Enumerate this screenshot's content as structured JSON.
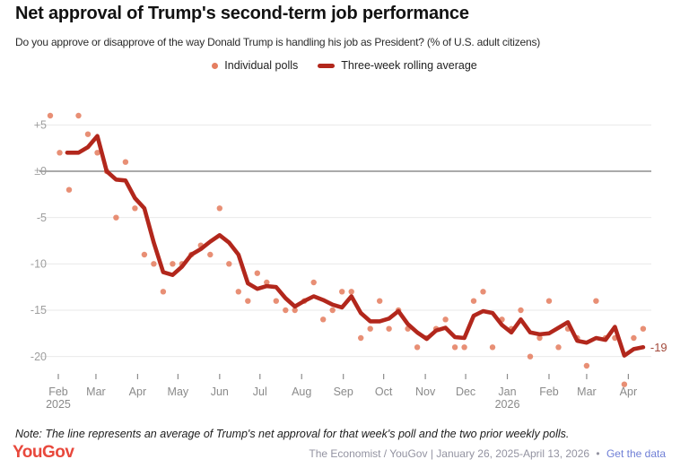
{
  "header": {
    "title": "Net approval of Trump's second-term job performance",
    "subtitle": "Do you approve or disapprove of the way Donald Trump is handling his job as President? (% of U.S. adult citizens)"
  },
  "colors": {
    "poll_dot": "#E57E60",
    "average_line": "#B2271C",
    "grid": "#EAEAEA",
    "zero_line": "#565656",
    "y_axis_text": "#9E9E9E",
    "x_axis_text": "#8A8A8A",
    "tick": "#8C8C8C",
    "end_label": "#A34A3C",
    "yougov_red": "#E8483C",
    "footer_text": "#9393A1",
    "link": "#6F7FD6"
  },
  "chart_data": {
    "type": "scatter+line",
    "title": "Net approval of Trump's second-term job performance",
    "subtitle": "Do you approve or disapprove of the way Donald Trump is handling his job as President? (% of U.S. adult citizens)",
    "grid": true,
    "legend_position": "top-center",
    "ylim": [
      -24,
      7
    ],
    "y_ticks": [
      {
        "label": "+5",
        "value": 5
      },
      {
        "label": "±0",
        "value": 0
      },
      {
        "label": "-5",
        "value": -5
      },
      {
        "label": "-10",
        "value": -10
      },
      {
        "label": "-15",
        "value": -15
      },
      {
        "label": "-20",
        "value": -20
      }
    ],
    "x_axis": {
      "months": [
        {
          "label": "Feb",
          "sublabel": "2025",
          "day_offset": 6
        },
        {
          "label": "Mar",
          "day_offset": 34
        },
        {
          "label": "Apr",
          "day_offset": 65
        },
        {
          "label": "May",
          "day_offset": 95
        },
        {
          "label": "Jun",
          "day_offset": 126
        },
        {
          "label": "Jul",
          "day_offset": 156
        },
        {
          "label": "Aug",
          "day_offset": 187
        },
        {
          "label": "Sep",
          "day_offset": 218
        },
        {
          "label": "Oct",
          "day_offset": 248
        },
        {
          "label": "Nov",
          "day_offset": 279
        },
        {
          "label": "Dec",
          "day_offset": 309
        },
        {
          "label": "Jan",
          "sublabel": "2026",
          "day_offset": 340
        },
        {
          "label": "Feb",
          "day_offset": 371
        },
        {
          "label": "Mar",
          "day_offset": 399
        },
        {
          "label": "Apr",
          "day_offset": 430
        }
      ]
    },
    "series": [
      {
        "name": "Individual polls",
        "type": "scatter",
        "color": "#E57E60",
        "start_date": "January 26, 2025",
        "interval_days": 7,
        "values": [
          6,
          2,
          -2,
          6,
          4,
          2,
          0,
          -5,
          1,
          -4,
          -9,
          -10,
          -13,
          -10,
          -10,
          -9,
          -8,
          -9,
          -4,
          -10,
          -13,
          -14,
          -11,
          -12,
          -14,
          -15,
          -15,
          -14,
          -12,
          -16,
          -15,
          -13,
          -13,
          -18,
          -17,
          -14,
          -17,
          -15,
          -17,
          -19,
          -18,
          -17,
          -16,
          -19,
          -19,
          -14,
          -13,
          -19,
          -16,
          -17,
          -15,
          -20,
          -18,
          -14,
          -19,
          -17,
          -18,
          -21,
          -14,
          -18,
          -18,
          -23,
          -18,
          -17
        ]
      },
      {
        "name": "Three-week rolling average",
        "type": "line",
        "color": "#B2271C",
        "end_label": "-19",
        "points": [
          [
            1.8,
            2.0
          ],
          [
            3,
            2.0
          ],
          [
            4,
            2.6
          ],
          [
            5,
            3.8
          ],
          [
            6,
            0.0
          ],
          [
            7,
            -0.9
          ],
          [
            8,
            -1.0
          ],
          [
            9,
            -2.9
          ],
          [
            10,
            -4.0
          ],
          [
            11,
            -7.7
          ],
          [
            12,
            -10.9
          ],
          [
            13,
            -11.2
          ],
          [
            14,
            -10.3
          ],
          [
            15,
            -9.0
          ],
          [
            16,
            -8.4
          ],
          [
            17,
            -7.6
          ],
          [
            18,
            -6.9
          ],
          [
            19,
            -7.7
          ],
          [
            20,
            -9.0
          ],
          [
            21,
            -12.1
          ],
          [
            22,
            -12.7
          ],
          [
            23,
            -12.4
          ],
          [
            24,
            -12.5
          ],
          [
            25,
            -13.7
          ],
          [
            26,
            -14.6
          ],
          [
            27,
            -14.0
          ],
          [
            28,
            -13.5
          ],
          [
            29,
            -13.9
          ],
          [
            30,
            -14.4
          ],
          [
            31,
            -14.7
          ],
          [
            32,
            -13.5
          ],
          [
            33,
            -15.3
          ],
          [
            34,
            -16.2
          ],
          [
            35,
            -16.2
          ],
          [
            36,
            -15.9
          ],
          [
            37,
            -15.1
          ],
          [
            38,
            -16.5
          ],
          [
            39,
            -17.4
          ],
          [
            40,
            -18.1
          ],
          [
            41,
            -17.2
          ],
          [
            42,
            -16.9
          ],
          [
            43,
            -17.9
          ],
          [
            44,
            -18.0
          ],
          [
            45,
            -15.6
          ],
          [
            46,
            -15.1
          ],
          [
            47,
            -15.3
          ],
          [
            48,
            -16.6
          ],
          [
            49,
            -17.4
          ],
          [
            50,
            -16.0
          ],
          [
            51,
            -17.4
          ],
          [
            52,
            -17.6
          ],
          [
            53,
            -17.5
          ],
          [
            54,
            -16.9
          ],
          [
            55,
            -16.3
          ],
          [
            56,
            -18.3
          ],
          [
            57,
            -18.5
          ],
          [
            58,
            -18.0
          ],
          [
            59,
            -18.2
          ],
          [
            60,
            -16.8
          ],
          [
            61,
            -19.9
          ],
          [
            62,
            -19.2
          ],
          [
            63,
            -19.0
          ]
        ]
      }
    ]
  },
  "footer": {
    "note": "Note: The line represents an average of Trump's net approval for that week's poll and the two prior weekly polls.",
    "logo": "YouGov",
    "source": "The Economist / YouGov | January 26, 2025-April 13, 2026",
    "separator": "•",
    "link": "Get the data"
  }
}
